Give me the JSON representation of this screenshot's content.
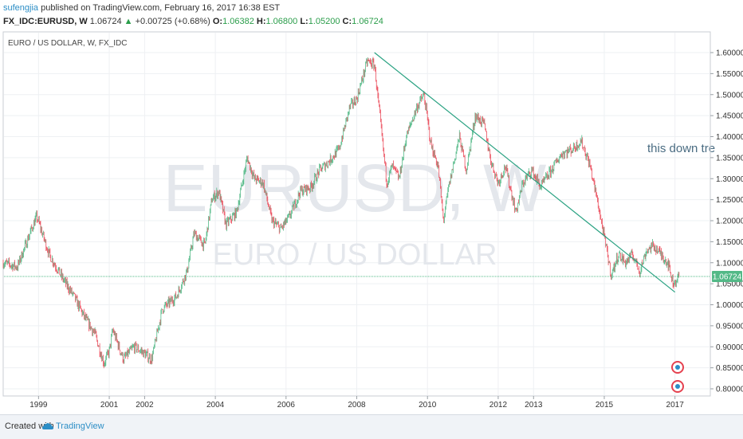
{
  "header": {
    "author": "sufengjia",
    "published": "published on TradingView.com, February 16, 2017 16:38 EST",
    "symbol": "FX_IDC:EURUSD, W",
    "last": "1.06724",
    "change": "+0.00725 (+0.68%)",
    "o_label": "O:",
    "o_value": "1.06382",
    "h_label": "H:",
    "h_value": "1.06800",
    "l_label": "L:",
    "l_value": "1.05200",
    "c_label": "C:",
    "c_value": "1.06724"
  },
  "legend_title": "EURO / US DOLLAR, W, FX_IDC",
  "watermark": {
    "symbol": "EURUSD, W",
    "name": "EURO / US DOLLAR"
  },
  "annotation_text": "this down tre",
  "price_badge": "1.06724",
  "footer": {
    "created": "Created with",
    "brand": "TradingView"
  },
  "colors": {
    "up": "#53b987",
    "down": "#eb4d5c",
    "trendline": "#2aa282",
    "price_line": "#53b987",
    "badge_bg": "#53b987",
    "grid": "#eef0f3"
  },
  "chart_data": {
    "type": "candlestick",
    "title": "EURO / US DOLLAR, W, FX_IDC",
    "x_ticks": [
      "1999",
      "2001",
      "2002",
      "2004",
      "2006",
      "2008",
      "2010",
      "2012",
      "2013",
      "2015",
      "2017"
    ],
    "x_tick_dates": [
      1999.0,
      2001.0,
      2002.0,
      2004.0,
      2006.0,
      2008.0,
      2010.0,
      2012.0,
      2013.0,
      2015.0,
      2017.0
    ],
    "y_ticks": [
      "1.60000",
      "1.55000",
      "1.50000",
      "1.45000",
      "1.40000",
      "1.35000",
      "1.30000",
      "1.25000",
      "1.20000",
      "1.15000",
      "1.10000",
      "1.05000",
      "1.00000",
      "0.95000",
      "0.90000",
      "0.85000",
      "0.80000"
    ],
    "ylim": [
      0.78,
      1.62
    ],
    "last_price": 1.06724,
    "series": [
      {
        "name": "FX_IDC:EURUSD, W",
        "points": [
          [
            1998.0,
            1.1
          ],
          [
            1998.4,
            1.09
          ],
          [
            1998.8,
            1.18
          ],
          [
            1998.95,
            1.21
          ],
          [
            1999.3,
            1.12
          ],
          [
            1999.7,
            1.06
          ],
          [
            2000.0,
            1.02
          ],
          [
            2000.3,
            0.97
          ],
          [
            2000.6,
            0.93
          ],
          [
            2000.85,
            0.86
          ],
          [
            2001.0,
            0.89
          ],
          [
            2001.1,
            0.94
          ],
          [
            2001.4,
            0.87
          ],
          [
            2001.7,
            0.9
          ],
          [
            2001.9,
            0.89
          ],
          [
            2002.2,
            0.87
          ],
          [
            2002.5,
            0.99
          ],
          [
            2002.9,
            1.02
          ],
          [
            2003.2,
            1.08
          ],
          [
            2003.4,
            1.17
          ],
          [
            2003.7,
            1.14
          ],
          [
            2003.9,
            1.25
          ],
          [
            2004.1,
            1.27
          ],
          [
            2004.3,
            1.19
          ],
          [
            2004.6,
            1.22
          ],
          [
            2004.9,
            1.35
          ],
          [
            2005.1,
            1.3
          ],
          [
            2005.35,
            1.29
          ],
          [
            2005.6,
            1.2
          ],
          [
            2005.85,
            1.18
          ],
          [
            2006.1,
            1.21
          ],
          [
            2006.4,
            1.27
          ],
          [
            2006.7,
            1.28
          ],
          [
            2006.95,
            1.32
          ],
          [
            2007.2,
            1.34
          ],
          [
            2007.5,
            1.37
          ],
          [
            2007.8,
            1.47
          ],
          [
            2008.0,
            1.49
          ],
          [
            2008.3,
            1.58
          ],
          [
            2008.5,
            1.57
          ],
          [
            2008.65,
            1.45
          ],
          [
            2008.85,
            1.29
          ],
          [
            2009.0,
            1.33
          ],
          [
            2009.2,
            1.3
          ],
          [
            2009.4,
            1.4
          ],
          [
            2009.7,
            1.47
          ],
          [
            2009.9,
            1.5
          ],
          [
            2010.1,
            1.38
          ],
          [
            2010.3,
            1.33
          ],
          [
            2010.45,
            1.2
          ],
          [
            2010.6,
            1.28
          ],
          [
            2010.9,
            1.4
          ],
          [
            2011.1,
            1.32
          ],
          [
            2011.35,
            1.45
          ],
          [
            2011.6,
            1.43
          ],
          [
            2011.8,
            1.34
          ],
          [
            2012.0,
            1.29
          ],
          [
            2012.2,
            1.33
          ],
          [
            2012.5,
            1.22
          ],
          [
            2012.7,
            1.29
          ],
          [
            2012.95,
            1.32
          ],
          [
            2013.2,
            1.28
          ],
          [
            2013.5,
            1.32
          ],
          [
            2013.8,
            1.36
          ],
          [
            2014.1,
            1.37
          ],
          [
            2014.35,
            1.39
          ],
          [
            2014.6,
            1.33
          ],
          [
            2014.8,
            1.25
          ],
          [
            2015.0,
            1.16
          ],
          [
            2015.2,
            1.07
          ],
          [
            2015.4,
            1.12
          ],
          [
            2015.6,
            1.1
          ],
          [
            2015.8,
            1.12
          ],
          [
            2016.0,
            1.08
          ],
          [
            2016.2,
            1.13
          ],
          [
            2016.4,
            1.14
          ],
          [
            2016.6,
            1.12
          ],
          [
            2016.8,
            1.1
          ],
          [
            2016.95,
            1.05
          ],
          [
            2017.12,
            1.06724
          ]
        ]
      }
    ],
    "trendline": {
      "from": [
        2008.5,
        1.6
      ],
      "to": [
        2017.0,
        1.03
      ]
    }
  }
}
